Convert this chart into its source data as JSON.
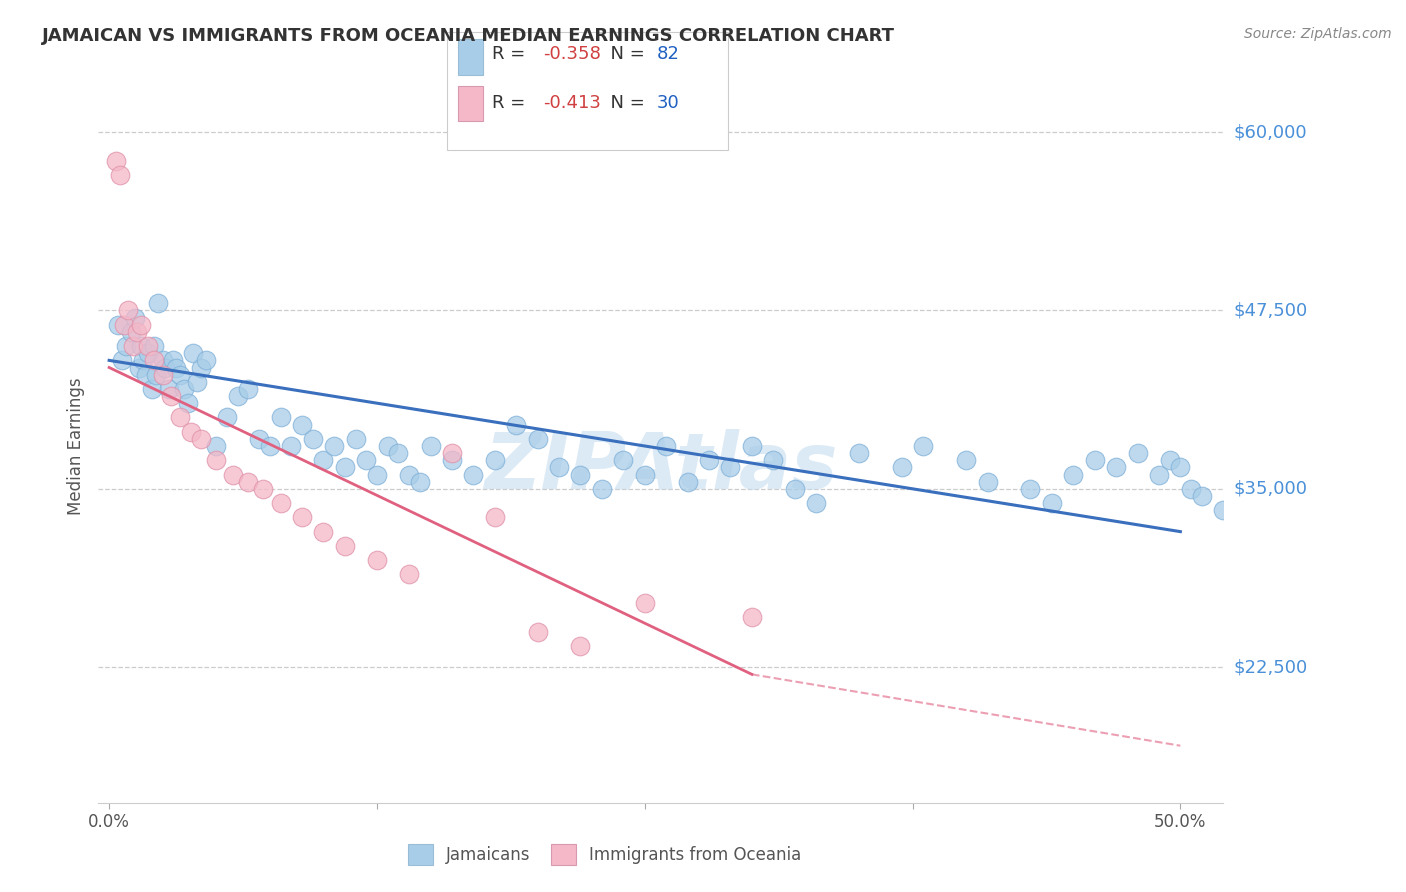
{
  "title": "JAMAICAN VS IMMIGRANTS FROM OCEANIA MEDIAN EARNINGS CORRELATION CHART",
  "source": "Source: ZipAtlas.com",
  "ylabel": "Median Earnings",
  "y_ticks": [
    22500,
    35000,
    47500,
    60000
  ],
  "y_tick_labels": [
    "$22,500",
    "$35,000",
    "$47,500",
    "$60,000"
  ],
  "x_min": 0.0,
  "x_max": 50.0,
  "y_min": 13000,
  "y_max": 63000,
  "blue_R": -0.358,
  "blue_N": 82,
  "pink_R": -0.413,
  "pink_N": 30,
  "blue_color": "#a8cde8",
  "pink_color": "#f4b8c8",
  "blue_line_color": "#3a6fbd",
  "pink_line_color": "#e06080",
  "watermark": "ZIPAtlas",
  "watermark_color": "#c5ddf0",
  "blue_scatter_x": [
    0.4,
    0.6,
    0.8,
    1.0,
    1.2,
    1.4,
    1.5,
    1.6,
    1.7,
    1.8,
    2.0,
    2.1,
    2.2,
    2.3,
    2.5,
    2.6,
    2.8,
    3.0,
    3.1,
    3.3,
    3.5,
    3.7,
    3.9,
    4.1,
    4.3,
    4.5,
    5.0,
    5.5,
    6.0,
    6.5,
    7.0,
    7.5,
    8.0,
    8.5,
    9.0,
    9.5,
    10.0,
    10.5,
    11.0,
    11.5,
    12.0,
    12.5,
    13.0,
    13.5,
    14.0,
    14.5,
    15.0,
    16.0,
    17.0,
    18.0,
    19.0,
    20.0,
    21.0,
    22.0,
    23.0,
    24.0,
    25.0,
    26.0,
    27.0,
    28.0,
    29.0,
    30.0,
    31.0,
    32.0,
    33.0,
    35.0,
    37.0,
    38.0,
    40.0,
    41.0,
    43.0,
    44.0,
    45.0,
    46.0,
    47.0,
    48.0,
    49.0,
    49.5,
    50.0,
    50.5,
    51.0,
    52.0
  ],
  "blue_scatter_y": [
    46500,
    44000,
    45000,
    46000,
    47000,
    43500,
    45000,
    44000,
    43000,
    44500,
    42000,
    45000,
    43000,
    48000,
    44000,
    43500,
    42000,
    44000,
    43500,
    43000,
    42000,
    41000,
    44500,
    42500,
    43500,
    44000,
    38000,
    40000,
    41500,
    42000,
    38500,
    38000,
    40000,
    38000,
    39500,
    38500,
    37000,
    38000,
    36500,
    38500,
    37000,
    36000,
    38000,
    37500,
    36000,
    35500,
    38000,
    37000,
    36000,
    37000,
    39500,
    38500,
    36500,
    36000,
    35000,
    37000,
    36000,
    38000,
    35500,
    37000,
    36500,
    38000,
    37000,
    35000,
    34000,
    37500,
    36500,
    38000,
    37000,
    35500,
    35000,
    34000,
    36000,
    37000,
    36500,
    37500,
    36000,
    37000,
    36500,
    35000,
    34500,
    33500
  ],
  "pink_scatter_x": [
    0.3,
    0.5,
    0.7,
    0.9,
    1.1,
    1.3,
    1.5,
    1.8,
    2.1,
    2.5,
    2.9,
    3.3,
    3.8,
    4.3,
    5.0,
    5.8,
    6.5,
    7.2,
    8.0,
    9.0,
    10.0,
    11.0,
    12.5,
    14.0,
    16.0,
    18.0,
    20.0,
    22.0,
    25.0,
    30.0
  ],
  "pink_scatter_y": [
    58000,
    57000,
    46500,
    47500,
    45000,
    46000,
    46500,
    45000,
    44000,
    43000,
    41500,
    40000,
    39000,
    38500,
    37000,
    36000,
    35500,
    35000,
    34000,
    33000,
    32000,
    31000,
    30000,
    29000,
    37500,
    33000,
    25000,
    24000,
    27000,
    26000
  ],
  "blue_line_x0": 0.0,
  "blue_line_x1": 50.0,
  "blue_line_y0": 44000,
  "blue_line_y1": 32000,
  "pink_line_solid_x0": 0.0,
  "pink_line_solid_x1": 30.0,
  "pink_line_solid_y0": 43500,
  "pink_line_solid_y1": 22000,
  "pink_line_dash_x0": 30.0,
  "pink_line_dash_x1": 50.0,
  "pink_line_dash_y0": 22000,
  "pink_line_dash_y1": 17000
}
